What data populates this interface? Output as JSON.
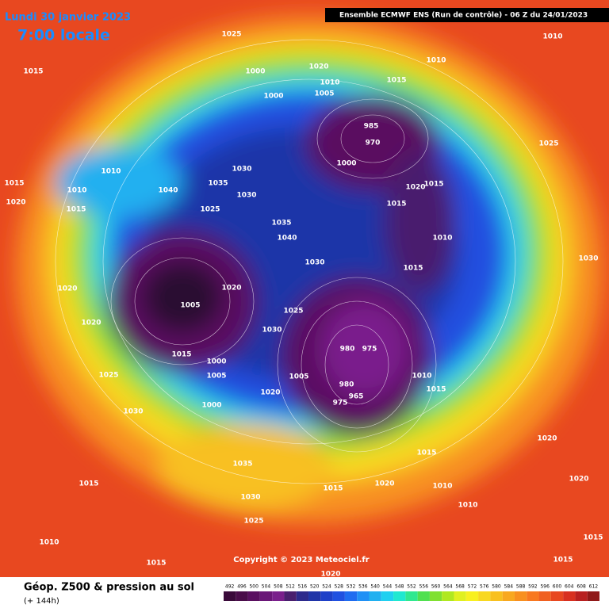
{
  "header": {
    "date": "Lundi 30 janvier 2023",
    "time": "7:00 locale",
    "run": "Ensemble ECMWF ENS  (Run de contrôle)  -  06 Z du 24/01/2023"
  },
  "map": {
    "copyright": "Copyright © 2023 Meteociel.fr",
    "pressure_labels": [
      1025,
      1015,
      1000,
      1020,
      1010,
      1010,
      1015,
      1010,
      1005,
      1000,
      985,
      970,
      1000,
      1010,
      1030,
      1040,
      1035,
      1030,
      1015,
      1020,
      1010,
      1015,
      1025,
      1015,
      1020,
      1015,
      1010,
      1035,
      1040,
      1030,
      1015,
      1025,
      1005,
      1020,
      1025,
      1030,
      1020,
      1020,
      980,
      975,
      1015,
      1000,
      1005,
      1025,
      1030,
      1000,
      1020,
      1005,
      980,
      965,
      975,
      1010,
      1015,
      1035,
      1030,
      1025,
      1015,
      1010,
      1015,
      1015,
      1020,
      1015,
      1010,
      1010,
      1020,
      1020,
      1015,
      1015,
      1020,
      1030
    ]
  },
  "footer": {
    "title": "Géop. Z500 & pression au sol",
    "lead": "(+ 144h)"
  },
  "legend": {
    "ticks": [
      492,
      496,
      500,
      504,
      508,
      512,
      516,
      520,
      524,
      528,
      532,
      536,
      540,
      544,
      548,
      552,
      556,
      560,
      564,
      568,
      572,
      576,
      580,
      584,
      588,
      592,
      596,
      600,
      604,
      608,
      612
    ],
    "colors": [
      "#3a0a3a",
      "#4a0d4a",
      "#5a1060",
      "#6a1678",
      "#7a1f8c",
      "#4a1f6e",
      "#2d2a8c",
      "#1f34a8",
      "#1e40c8",
      "#2050e0",
      "#1f6cf0",
      "#2090f5",
      "#20b0f0",
      "#20d0f0",
      "#20e8d0",
      "#30e890",
      "#50e050",
      "#80e030",
      "#b0e820",
      "#e0f020",
      "#f8f020",
      "#f8d820",
      "#f8c020",
      "#f8a820",
      "#f89020",
      "#f87820",
      "#f06020",
      "#e84820",
      "#d83020",
      "#b82020",
      "#901818"
    ]
  }
}
